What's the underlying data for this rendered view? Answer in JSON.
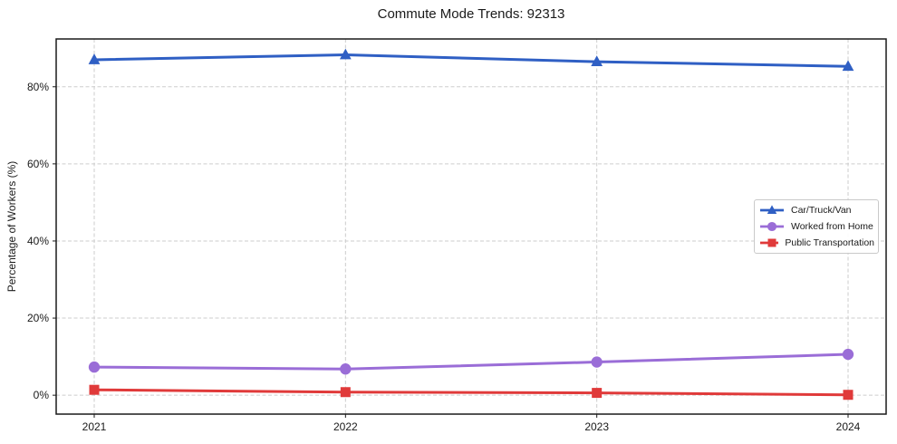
{
  "chart_data": {
    "type": "line",
    "title": "Commute Mode Trends: 92313",
    "xlabel": "",
    "ylabel": "Percentage of Workers (%)",
    "categories": [
      "2021",
      "2022",
      "2023",
      "2024"
    ],
    "series": [
      {
        "name": "Car/Truck/Van",
        "marker": "triangle",
        "color": "#2f5fc4",
        "values": [
          87.0,
          88.3,
          86.5,
          85.3
        ]
      },
      {
        "name": "Worked from Home",
        "marker": "circle",
        "color": "#9a6dd7",
        "values": [
          7.3,
          6.8,
          8.6,
          10.6
        ]
      },
      {
        "name": "Public Transportation",
        "marker": "square",
        "color": "#e03a3a",
        "values": [
          1.4,
          0.8,
          0.6,
          0.1
        ]
      }
    ],
    "yticks": [
      0,
      20,
      40,
      60,
      80
    ],
    "ytick_labels": [
      "0%",
      "20%",
      "40%",
      "60%",
      "80%"
    ],
    "ylim": [
      -4.9,
      92.4
    ],
    "grid": true,
    "legend_position": "center-right"
  },
  "colors": {
    "grid": "#cdcdcd",
    "spine": "#1a1a1a",
    "text": "#1a1a1a",
    "background": "#ffffff"
  }
}
